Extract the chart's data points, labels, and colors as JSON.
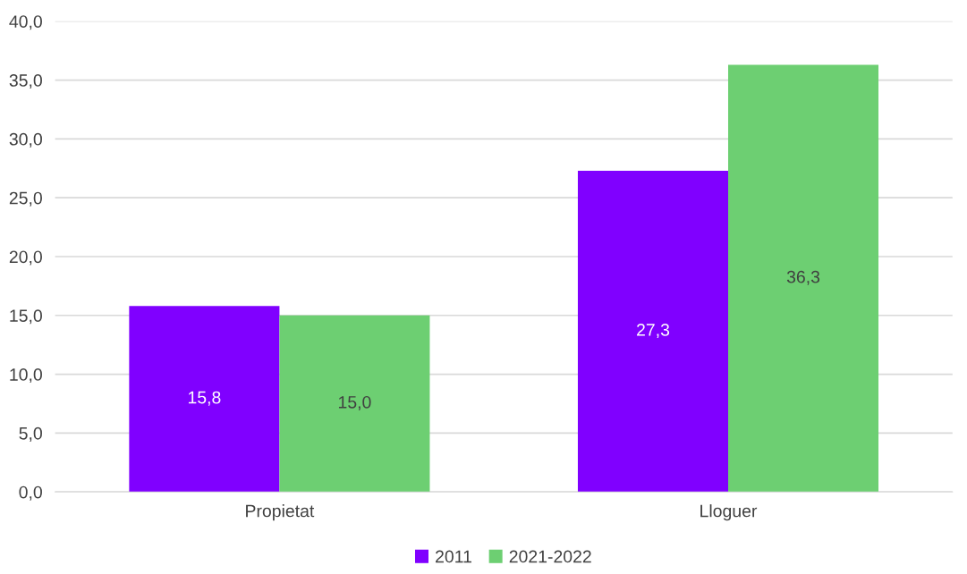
{
  "chart_data": {
    "type": "bar",
    "categories": [
      "Propietat",
      "Lloguer"
    ],
    "series": [
      {
        "name": "2011",
        "color": "#8000ff",
        "values": [
          15.8,
          27.3
        ],
        "value_labels": [
          "15,8",
          "27,3"
        ]
      },
      {
        "name": "2021-2022",
        "color": "#6dcf72",
        "values": [
          15.0,
          36.3
        ],
        "value_labels": [
          "15,0",
          "36,3"
        ]
      }
    ],
    "ylim": [
      0,
      40
    ],
    "yticks": [
      {
        "value": 0,
        "label": "0,0"
      },
      {
        "value": 5,
        "label": "5,0"
      },
      {
        "value": 10,
        "label": "10,0"
      },
      {
        "value": 15,
        "label": "15,0"
      },
      {
        "value": 20,
        "label": "20,0"
      },
      {
        "value": 25,
        "label": "25,0"
      },
      {
        "value": 30,
        "label": "30,0"
      },
      {
        "value": 35,
        "label": "35,0"
      },
      {
        "value": 40,
        "label": "40,0"
      }
    ],
    "grid": "y",
    "legend": "bottom"
  }
}
